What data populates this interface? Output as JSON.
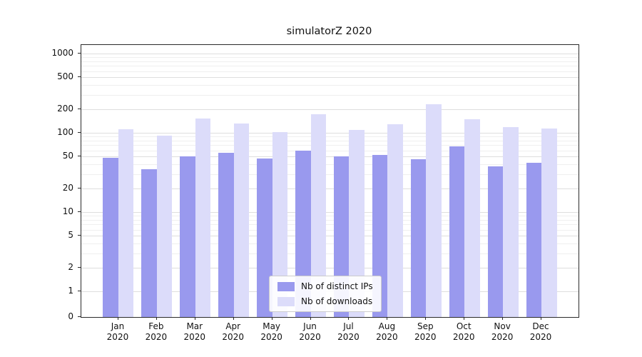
{
  "chart_data": {
    "type": "bar",
    "title": "simulatorZ 2020",
    "categories": [
      "Jan",
      "Feb",
      "Mar",
      "Apr",
      "May",
      "Jun",
      "Jul",
      "Aug",
      "Sep",
      "Oct",
      "Nov",
      "Dec"
    ],
    "year": "2020",
    "series": [
      {
        "name": "Nb of distinct IPs",
        "color": "#9999ee",
        "values": [
          48,
          35,
          50,
          56,
          47,
          59,
          50,
          53,
          46,
          67,
          38,
          42
        ]
      },
      {
        "name": "Nb of downloads",
        "color": "#dcdcfa",
        "values": [
          110,
          92,
          150,
          132,
          103,
          172,
          108,
          128,
          230,
          148,
          118,
          113
        ]
      }
    ],
    "yscale": "symlog",
    "ylim": [
      0,
      1000
    ],
    "y_major_ticks": [
      0,
      1,
      2,
      5,
      10,
      20,
      50,
      100,
      200,
      500,
      1000
    ],
    "y_minor_gridlines": [
      3,
      4,
      6,
      7,
      8,
      9,
      30,
      40,
      60,
      70,
      80,
      90,
      300,
      400,
      600,
      700,
      800,
      900
    ],
    "grid": "horizontal",
    "legend_position": "lower center"
  }
}
